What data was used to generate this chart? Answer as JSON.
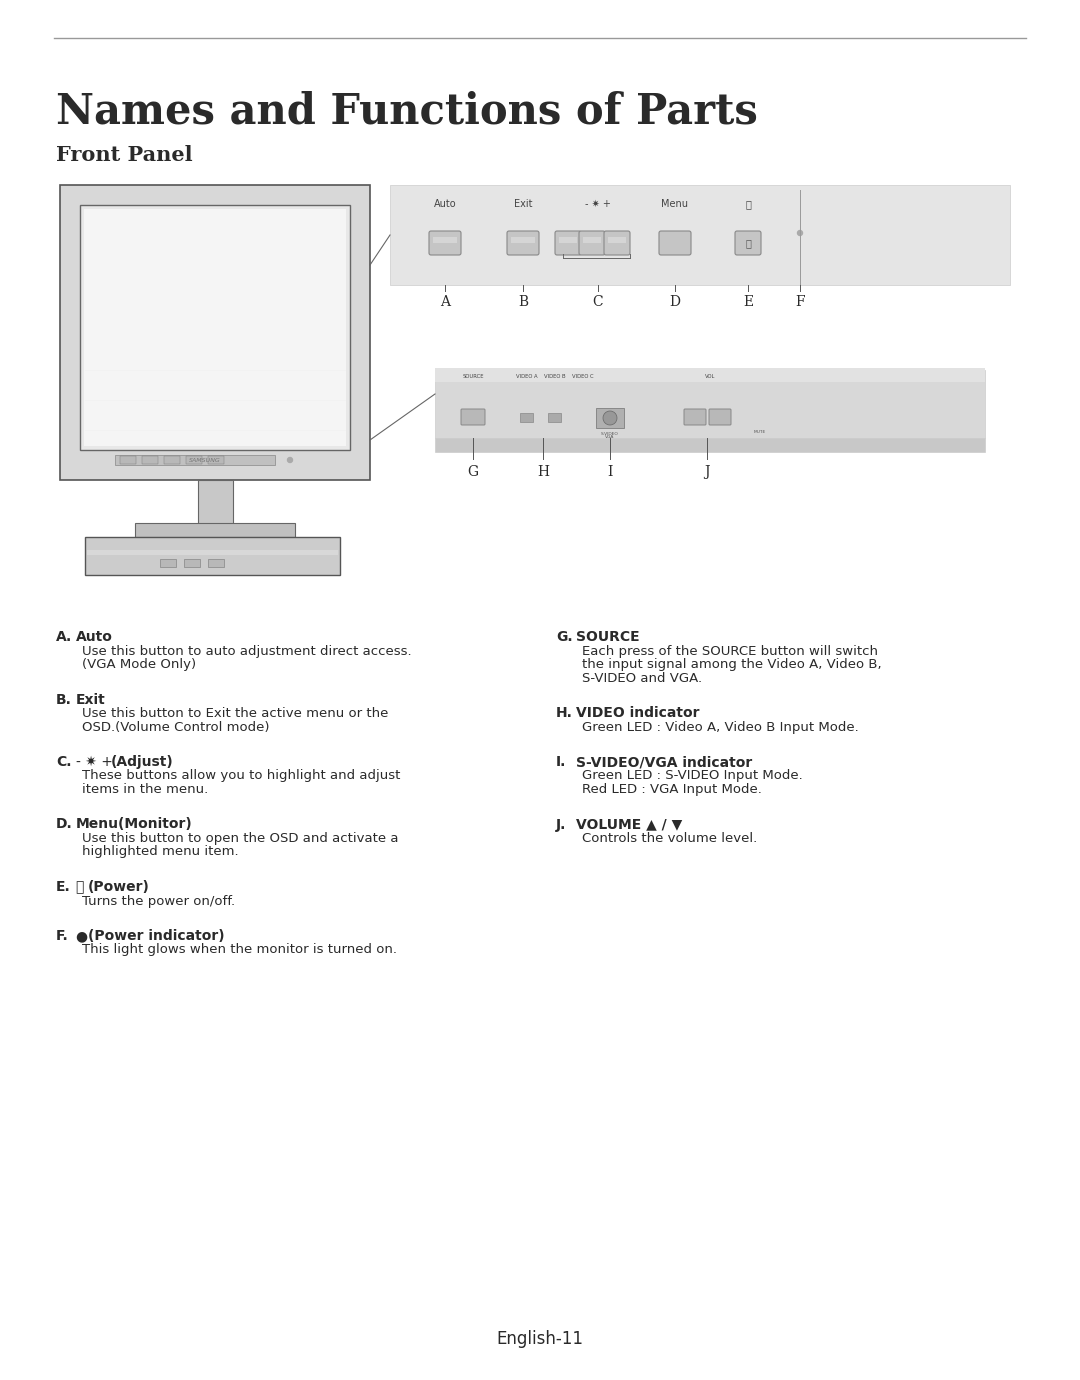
{
  "page_bg": "#ffffff",
  "text_color": "#2a2a2a",
  "title": "Names and Functions of Parts",
  "subtitle": "Front Panel",
  "footer": "English-11",
  "sections_left": [
    {
      "letter": "A.",
      "label": "Auto",
      "body": "Use this button to auto adjustment direct access.\n(VGA Mode Only)"
    },
    {
      "letter": "B.",
      "label": "Exit",
      "body": "Use this button to Exit the active menu or the\nOSD.(Volume Control mode)"
    },
    {
      "letter": "C.",
      "label_parts": [
        "- ✷ + ",
        "(Adjust)"
      ],
      "label_bold": [
        false,
        true
      ],
      "body": "These buttons allow you to highlight and adjust\nitems in the menu."
    },
    {
      "letter": "D.",
      "label": "Menu(Monitor)",
      "body": "Use this button to open the OSD and activate a\nhighlighted menu item."
    },
    {
      "letter": "E.",
      "label_parts": [
        "⏻ ",
        "(Power)"
      ],
      "label_bold": [
        false,
        true
      ],
      "body": "Turns the power on/off."
    },
    {
      "letter": "F.",
      "label_parts": [
        "● ",
        "(Power indicator)"
      ],
      "label_bold": [
        false,
        true
      ],
      "body": "This light glows when the monitor is turned on."
    }
  ],
  "sections_right": [
    {
      "letter": "G.",
      "label": "SOURCE",
      "body": "Each press of the SOURCE button will switch\nthe input signal among the Video A, Video B,\nS-VIDEO and VGA."
    },
    {
      "letter": "H.",
      "label": "VIDEO indicator",
      "body": "Green LED : Video A, Video B Input Mode."
    },
    {
      "letter": "I.",
      "label": "S-VIDEO/VGA indicator",
      "body": "Green LED : S-VIDEO Input Mode.\nRed LED : VGA Input Mode."
    },
    {
      "letter": "J.",
      "label_parts": [
        "VOLUME ▲ / ▼"
      ],
      "label_bold": [
        true
      ],
      "body": "Controls the volume level."
    }
  ]
}
